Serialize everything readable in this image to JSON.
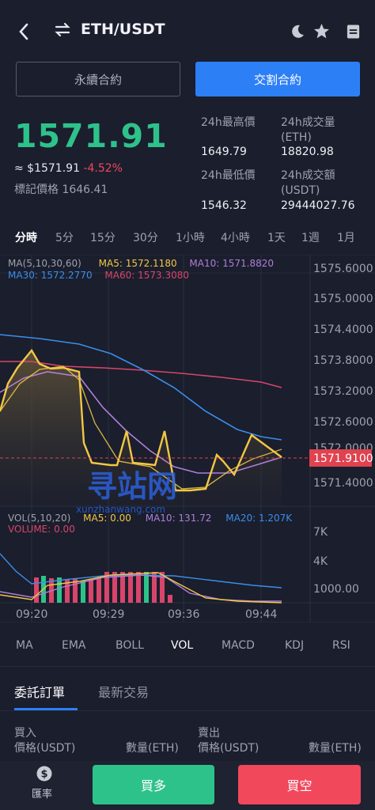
{
  "header": {
    "title": "ETH/USDT"
  },
  "tabs": [
    {
      "label": "永續合約"
    },
    {
      "label": "交割合約"
    }
  ],
  "price": {
    "last": "1571.91",
    "usd": "≈ $1571.91",
    "change": "-4.52%",
    "mark": "標記價格 1646.41"
  },
  "stats": {
    "high_label": "24h最高價",
    "high": "1649.79",
    "low_label": "24h最低價",
    "low": "1546.32",
    "vol_label": "24h成交量\n(ETH)",
    "vol": "18820.98",
    "amt_label": "24h成交額\n(USDT)",
    "amt": "29444027.76"
  },
  "periods": [
    "分時",
    "5分",
    "15分",
    "30分",
    "1小時",
    "4小時",
    "1天",
    "1週",
    "1月"
  ],
  "chart": {
    "ma_legend": {
      "title": "MA(5,10,30,60)",
      "ma5": "MA5: 1572.1180",
      "ma10": "MA10: 1571.8820",
      "ma30": "MA30: 1572.2770",
      "ma60": "MA60: 1573.3080"
    },
    "y_ticks": [
      "1575.6000",
      "1575.0000",
      "1574.4000",
      "1573.8000",
      "1573.2000",
      "1572.6000",
      "1572.0000",
      "1571.4000"
    ],
    "last_tag": "1571.9100",
    "vol_legend": {
      "title": "VOL(5,10,20)",
      "ma5": "MA5: 0.00",
      "ma10": "MA10: 131.72",
      "ma20": "MA20: 1.207K",
      "volume": "VOLUME: 0.00"
    },
    "vol_ticks": [
      "7K",
      "4K",
      "1000.00"
    ],
    "x_ticks": [
      "09:20",
      "09:29",
      "09:36",
      "09:44"
    ],
    "watermark": "寻站网",
    "watermark_url": "xunzhanwang.com",
    "colors": {
      "ma5": "#f2c744",
      "ma10": "#b07ed8",
      "ma30": "#3b8eea",
      "ma60": "#d9456a",
      "line": "#f2c744",
      "tag": "#e0424f"
    }
  },
  "indicators": [
    "MA",
    "EMA",
    "BOLL",
    "VOL",
    "MACD",
    "KDJ",
    "RSI"
  ],
  "sections": [
    {
      "label": "委託訂單"
    },
    {
      "label": "最新交易"
    }
  ],
  "orderbook": {
    "buy": "買入",
    "buy_price": "價格(USDT)",
    "buy_qty": "數量(ETH)",
    "sell": "賣出",
    "sell_price": "價格(USDT)",
    "sell_qty": "數量(ETH)"
  },
  "bottom": {
    "rate": "匯率",
    "buy_long": "買多",
    "sell_short": "買空",
    "colors": {
      "buy": "#2ec28b",
      "sell": "#f1485c"
    }
  }
}
